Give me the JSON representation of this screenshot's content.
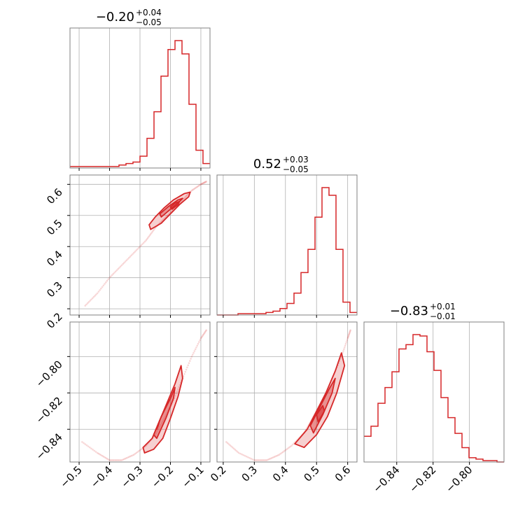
{
  "chart_data": {
    "type": "corner",
    "color": "#d62728",
    "params": [
      {
        "title": {
          "median": "−0.20",
          "plus": "+0.04",
          "minus": "−0.05"
        },
        "range": [
          -0.53,
          -0.07
        ],
        "ticks": [
          -0.5,
          -0.4,
          -0.3,
          -0.2,
          -0.1
        ],
        "tick_labels": [
          "−0.5",
          "−0.4",
          "−0.3",
          "−0.2",
          "−0.1"
        ],
        "hist_edges": [
          -0.53,
          -0.507,
          -0.484,
          -0.461,
          -0.438,
          -0.415,
          -0.392,
          -0.369,
          -0.346,
          -0.323,
          -0.3,
          -0.277,
          -0.254,
          -0.231,
          -0.208,
          -0.185,
          -0.162,
          -0.139,
          -0.116,
          -0.093,
          -0.07
        ],
        "hist_counts": [
          1,
          1,
          1,
          1,
          1,
          1,
          1,
          2,
          3,
          4,
          8,
          20,
          38,
          62,
          80,
          86,
          77,
          43,
          12,
          3
        ]
      },
      {
        "title": {
          "median": "0.52",
          "plus": "+0.03",
          "minus": "−0.05"
        },
        "range": [
          0.18,
          0.63
        ],
        "ticks": [
          0.2,
          0.3,
          0.4,
          0.5,
          0.6
        ],
        "tick_labels": [
          "0.2",
          "0.3",
          "0.4",
          "0.5",
          "0.6"
        ],
        "hist_edges": [
          0.18,
          0.2025,
          0.225,
          0.2475,
          0.27,
          0.2925,
          0.315,
          0.3375,
          0.36,
          0.3825,
          0.405,
          0.4275,
          0.45,
          0.4725,
          0.495,
          0.5175,
          0.54,
          0.5625,
          0.585,
          0.6075,
          0.63
        ],
        "hist_counts": [
          0,
          0,
          0,
          1,
          1,
          1,
          1,
          2,
          3,
          5,
          9,
          17,
          33,
          51,
          76,
          99,
          93,
          51,
          10,
          2
        ]
      },
      {
        "title": {
          "median": "−0.83",
          "plus": "+0.01",
          "minus": "−0.01"
        },
        "range": [
          -0.858,
          -0.781
        ],
        "ticks": [
          -0.84,
          -0.82,
          -0.8
        ],
        "tick_labels": [
          "−0.84",
          "−0.82",
          "−0.80"
        ],
        "hist_edges": [
          -0.858,
          -0.85415,
          -0.8503,
          -0.84645,
          -0.8426,
          -0.83875,
          -0.8349,
          -0.83105,
          -0.8272,
          -0.82335,
          -0.8195,
          -0.81565,
          -0.8118,
          -0.80795,
          -0.8041,
          -0.80025,
          -0.7964,
          -0.79255,
          -0.7887,
          -0.78485,
          -0.781
        ],
        "hist_counts": [
          18,
          25,
          41,
          52,
          63,
          79,
          82,
          89,
          88,
          77,
          64,
          45,
          31,
          20,
          10,
          3,
          2,
          1,
          1,
          0
        ]
      }
    ],
    "scatter_curve": {
      "p01": [
        [
          -0.48,
          0.21
        ],
        [
          -0.44,
          0.25
        ],
        [
          -0.4,
          0.3
        ],
        [
          -0.36,
          0.34
        ],
        [
          -0.32,
          0.38
        ],
        [
          -0.28,
          0.42
        ],
        [
          -0.25,
          0.46
        ],
        [
          -0.22,
          0.49
        ],
        [
          -0.19,
          0.52
        ],
        [
          -0.16,
          0.55
        ],
        [
          -0.13,
          0.58
        ],
        [
          -0.1,
          0.6
        ],
        [
          -0.08,
          0.61
        ]
      ],
      "p02": [
        [
          -0.49,
          -0.847
        ],
        [
          -0.44,
          -0.853
        ],
        [
          -0.4,
          -0.857
        ],
        [
          -0.36,
          -0.857
        ],
        [
          -0.32,
          -0.854
        ],
        [
          -0.28,
          -0.849
        ],
        [
          -0.25,
          -0.843
        ],
        [
          -0.22,
          -0.834
        ],
        [
          -0.19,
          -0.824
        ],
        [
          -0.16,
          -0.812
        ],
        [
          -0.13,
          -0.8
        ],
        [
          -0.1,
          -0.79
        ],
        [
          -0.08,
          -0.785
        ]
      ],
      "p12": [
        [
          0.21,
          -0.847
        ],
        [
          0.25,
          -0.853
        ],
        [
          0.3,
          -0.857
        ],
        [
          0.34,
          -0.857
        ],
        [
          0.38,
          -0.854
        ],
        [
          0.42,
          -0.849
        ],
        [
          0.46,
          -0.842
        ],
        [
          0.49,
          -0.833
        ],
        [
          0.52,
          -0.824
        ],
        [
          0.55,
          -0.812
        ],
        [
          0.58,
          -0.8
        ],
        [
          0.6,
          -0.79
        ],
        [
          0.61,
          -0.785
        ]
      ]
    },
    "contours": {
      "p01": [
        {
          "level": "outer",
          "pts": [
            [
              -0.265,
              0.455
            ],
            [
              -0.23,
              0.475
            ],
            [
              -0.2,
              0.505
            ],
            [
              -0.17,
              0.535
            ],
            [
              -0.14,
              0.56
            ],
            [
              -0.135,
              0.575
            ],
            [
              -0.155,
              0.57
            ],
            [
              -0.19,
              0.55
            ],
            [
              -0.22,
              0.525
            ],
            [
              -0.25,
              0.495
            ],
            [
              -0.27,
              0.47
            ]
          ]
        },
        {
          "level": "inner",
          "pts": [
            [
              -0.23,
              0.495
            ],
            [
              -0.2,
              0.52
            ],
            [
              -0.17,
              0.545
            ],
            [
              -0.16,
              0.555
            ],
            [
              -0.175,
              0.55
            ],
            [
              -0.205,
              0.53
            ],
            [
              -0.235,
              0.505
            ]
          ]
        },
        {
          "level": "core",
          "pts": [
            [
              -0.195,
              0.52
            ],
            [
              -0.175,
              0.535
            ],
            [
              -0.17,
              0.545
            ],
            [
              -0.185,
              0.54
            ],
            [
              -0.2,
              0.527
            ]
          ]
        }
      ],
      "p02": [
        {
          "level": "outer",
          "pts": [
            [
              -0.29,
              -0.85
            ],
            [
              -0.26,
              -0.845
            ],
            [
              -0.235,
              -0.835
            ],
            [
              -0.21,
              -0.825
            ],
            [
              -0.185,
              -0.815
            ],
            [
              -0.165,
              -0.805
            ],
            [
              -0.16,
              -0.812
            ],
            [
              -0.175,
              -0.822
            ],
            [
              -0.2,
              -0.834
            ],
            [
              -0.225,
              -0.845
            ],
            [
              -0.255,
              -0.851
            ],
            [
              -0.285,
              -0.853
            ]
          ]
        },
        {
          "level": "inner",
          "pts": [
            [
              -0.255,
              -0.843
            ],
            [
              -0.23,
              -0.833
            ],
            [
              -0.2,
              -0.823
            ],
            [
              -0.185,
              -0.817
            ],
            [
              -0.19,
              -0.823
            ],
            [
              -0.215,
              -0.834
            ],
            [
              -0.245,
              -0.845
            ]
          ]
        },
        {
          "level": "core",
          "pts": [
            [
              -0.245,
              -0.84
            ],
            [
              -0.235,
              -0.835
            ],
            [
              -0.24,
              -0.838
            ]
          ]
        }
      ],
      "p12": [
        {
          "level": "outer",
          "pts": [
            [
              0.43,
              -0.848
            ],
            [
              0.47,
              -0.84
            ],
            [
              0.5,
              -0.83
            ],
            [
              0.53,
              -0.82
            ],
            [
              0.56,
              -0.808
            ],
            [
              0.58,
              -0.798
            ],
            [
              0.59,
              -0.805
            ],
            [
              0.565,
              -0.82
            ],
            [
              0.535,
              -0.833
            ],
            [
              0.5,
              -0.843
            ],
            [
              0.46,
              -0.85
            ]
          ]
        },
        {
          "level": "inner",
          "pts": [
            [
              0.48,
              -0.838
            ],
            [
              0.51,
              -0.828
            ],
            [
              0.54,
              -0.818
            ],
            [
              0.56,
              -0.812
            ],
            [
              0.55,
              -0.82
            ],
            [
              0.52,
              -0.832
            ],
            [
              0.49,
              -0.842
            ]
          ]
        },
        {
          "level": "core",
          "pts": [
            [
              0.5,
              -0.832
            ],
            [
              0.52,
              -0.827
            ],
            [
              0.525,
              -0.83
            ],
            [
              0.505,
              -0.836
            ]
          ]
        }
      ]
    }
  }
}
